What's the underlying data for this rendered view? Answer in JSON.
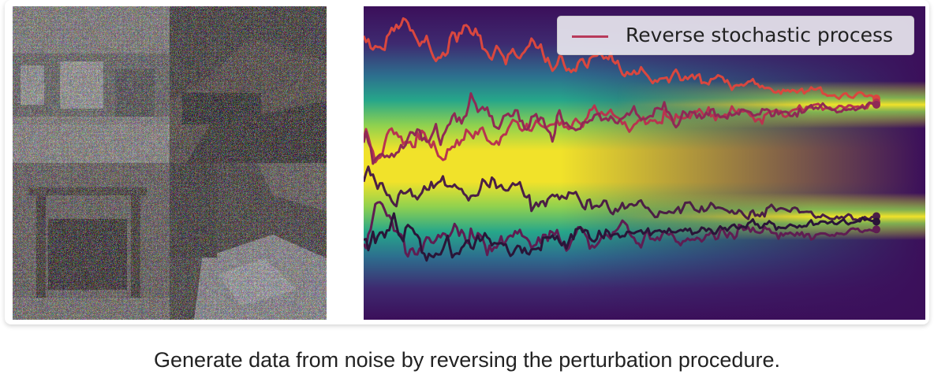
{
  "figure": {
    "left_panel": {
      "content": "noisy-image-grid",
      "tiles": 4
    },
    "right_panel": {
      "content": "reverse-process-trajectories",
      "legend_label": "Reverse stochastic process",
      "colors": {
        "background": "#3b0f5a",
        "mid": "#21918c",
        "high": "#f5e12a",
        "trajectory": "#b83a5b"
      },
      "trajectories": 6
    }
  },
  "caption": "Generate data from noise by reversing the perturbation procedure."
}
